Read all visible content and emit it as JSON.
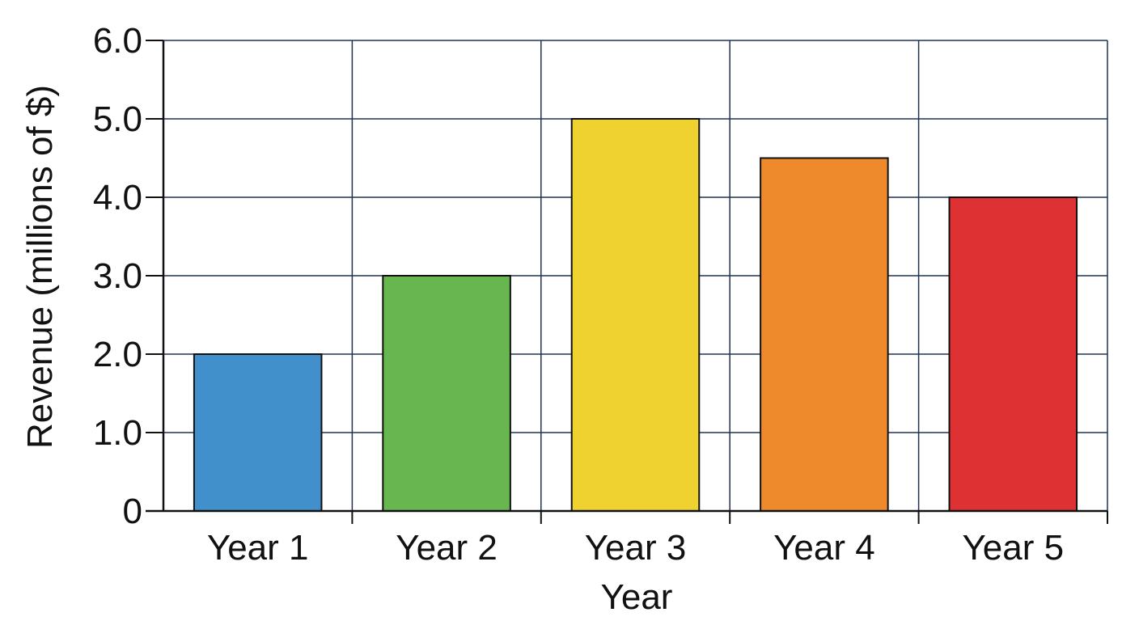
{
  "chart_data": {
    "type": "bar",
    "title": "",
    "xlabel": "Year",
    "ylabel": "Revenue (millions of $)",
    "categories": [
      "Year 1",
      "Year 2",
      "Year 3",
      "Year 4",
      "Year 5"
    ],
    "values": [
      2.0,
      3.0,
      5.0,
      4.5,
      4.0
    ],
    "colors": [
      "#4290cb",
      "#68b64f",
      "#efd230",
      "#ee8a2c",
      "#de3133"
    ],
    "ylim": [
      0,
      6
    ],
    "yticks": [
      0,
      1,
      2,
      3,
      4,
      5,
      6
    ],
    "ytick_labels": [
      "0",
      "1.0",
      "2.0",
      "3.0",
      "4.0",
      "5.0",
      "6.0"
    ],
    "grid": true,
    "grid_color": "#1f3350",
    "bar_outline_color": "#111111",
    "legend": "none"
  }
}
